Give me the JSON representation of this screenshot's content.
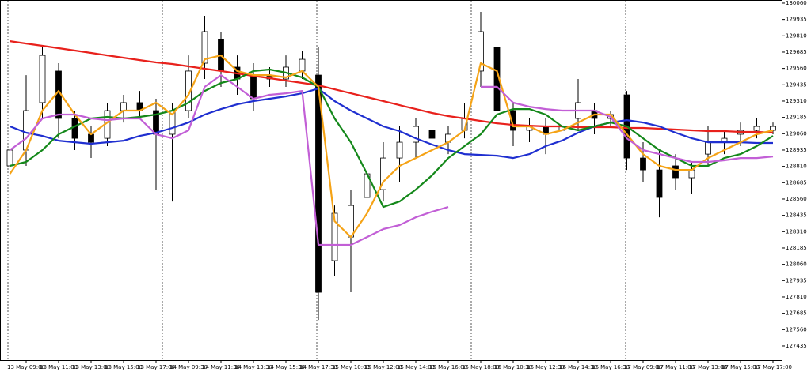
{
  "chart_data": {
    "type": "candlestick",
    "categories": [
      null,
      "13 May 09:00",
      null,
      "13 May 11:00",
      null,
      "13 May 13:00",
      null,
      "13 May 15:00",
      null,
      "13 May 17:00",
      null,
      "14 May 09:30",
      null,
      "14 May 11:30",
      null,
      "14 May 13:30",
      null,
      "14 May 15:30",
      null,
      "14 May 17:30",
      null,
      "15 May 10:00",
      null,
      "15 May 12:00",
      null,
      "15 May 14:00",
      null,
      "15 May 16:00",
      null,
      "15 May 18:00",
      null,
      "16 May 10:30",
      null,
      "16 May 12:30",
      null,
      "16 May 14:30",
      null,
      "16 May 16:30",
      null,
      "17 May 09:00",
      null,
      "17 May 11:00",
      null,
      "17 May 13:00",
      null,
      "17 May 15:00",
      null,
      "17 May 17:00"
    ],
    "open": [
      128814,
      128935,
      129298,
      129540,
      129177,
      129056,
      129025,
      129237,
      129298,
      129237,
      129056,
      129237,
      129600,
      129782,
      129570,
      129509,
      129509,
      129479,
      129540,
      129509,
      128088,
      128269,
      128572,
      128632,
      128874,
      128995,
      129086,
      128995,
      129086,
      129540,
      129721,
      129237,
      129086,
      129116,
      129086,
      129177,
      129237,
      129177,
      129358,
      128874,
      128783,
      128814,
      128723,
      128904,
      128995,
      129056,
      129086,
      129086
    ],
    "high": [
      129298,
      129509,
      129721,
      129600,
      129237,
      129116,
      129298,
      129358,
      129388,
      129328,
      129298,
      129660,
      129963,
      129842,
      129660,
      129600,
      129570,
      129660,
      129691,
      129721,
      128511,
      128632,
      128874,
      128995,
      129116,
      129177,
      129207,
      129116,
      129298,
      129993,
      129751,
      129298,
      129177,
      129177,
      129207,
      129479,
      129298,
      129237,
      129388,
      128995,
      128935,
      128904,
      128844,
      129116,
      129086,
      129146,
      129177,
      129146
    ],
    "low": [
      128693,
      128814,
      129177,
      129025,
      128935,
      128874,
      128965,
      129146,
      129177,
      128632,
      128541,
      129177,
      129479,
      129419,
      129358,
      129237,
      129419,
      129419,
      129479,
      127634,
      127967,
      127846,
      128451,
      128541,
      128693,
      128874,
      128935,
      128904,
      129025,
      129419,
      128814,
      128965,
      128995,
      128904,
      128965,
      129086,
      129056,
      129116,
      128783,
      128693,
      128420,
      128632,
      128602,
      128814,
      128904,
      128965,
      129025,
      129056
    ],
    "close": [
      128935,
      129237,
      129660,
      129177,
      129025,
      128995,
      129237,
      129298,
      129237,
      129056,
      129237,
      129540,
      129842,
      129540,
      129479,
      129328,
      129479,
      129570,
      129630,
      127846,
      128451,
      128511,
      128753,
      128874,
      128995,
      129116,
      129025,
      129056,
      129177,
      129842,
      129237,
      129086,
      129116,
      129056,
      129116,
      129298,
      129177,
      129207,
      128874,
      128783,
      128572,
      128723,
      128783,
      128995,
      129025,
      129086,
      129116,
      129116
    ],
    "up_color": "#ffffff",
    "down_color": "#000000",
    "lines": [
      {
        "color": "#e8211c",
        "values": [
          129769,
          129751,
          129733,
          129715,
          129697,
          129679,
          129660,
          129642,
          129624,
          129606,
          129594,
          129576,
          129558,
          129540,
          129521,
          129503,
          129485,
          129467,
          129449,
          129431,
          129400,
          129370,
          129340,
          129310,
          129279,
          129249,
          129219,
          129195,
          129177,
          129158,
          129140,
          129128,
          129122,
          129116,
          129116,
          129110,
          129110,
          129110,
          129104,
          129104,
          129098,
          129092,
          129086,
          129080,
          129080,
          129074,
          129074,
          129068
        ]
      },
      {
        "color": "#1f2fd0",
        "values": [
          129116,
          129068,
          129043,
          129007,
          128995,
          128983,
          128995,
          129007,
          129043,
          129068,
          129104,
          129146,
          129207,
          129249,
          129285,
          129310,
          129328,
          129346,
          129370,
          129406,
          129310,
          129237,
          129177,
          129116,
          129080,
          129025,
          128977,
          128935,
          128904,
          128898,
          128892,
          128874,
          128904,
          128965,
          129007,
          129068,
          129116,
          129146,
          129164,
          129146,
          129116,
          129068,
          129025,
          128995,
          128995,
          128995,
          128989,
          128989
        ]
      },
      {
        "color": "#14881a",
        "values": [
          128814,
          128844,
          128935,
          129056,
          129116,
          129177,
          129189,
          129177,
          129189,
          129207,
          129237,
          129298,
          129388,
          129449,
          129479,
          129540,
          129552,
          129528,
          129491,
          129419,
          129177,
          128995,
          128753,
          128499,
          128541,
          128632,
          128741,
          128874,
          128965,
          129056,
          129207,
          129249,
          129249,
          129207,
          129116,
          129086,
          129116,
          129146,
          129116,
          129025,
          128935,
          128874,
          128814,
          128814,
          128874,
          128904,
          128965,
          129043
        ]
      },
      {
        "color": "#f5a316",
        "values": [
          128753,
          128935,
          129237,
          129388,
          129207,
          129056,
          129146,
          129237,
          129237,
          129298,
          129207,
          129358,
          129630,
          129660,
          129540,
          129509,
          129509,
          129491,
          129540,
          129419,
          128390,
          128269,
          128451,
          128693,
          128814,
          128874,
          128935,
          128995,
          129086,
          129600,
          129540,
          129116,
          129116,
          129056,
          129086,
          129146,
          129207,
          129207,
          129056,
          128904,
          128814,
          128783,
          128783,
          128874,
          128935,
          128995,
          129056,
          129086
        ]
      },
      {
        "color": "#c25fd6",
        "values": [
          128935,
          129025,
          129177,
          129207,
          129207,
          129177,
          129164,
          129177,
          129177,
          129056,
          129025,
          129086,
          129419,
          129509,
          129419,
          129328,
          129358,
          129370,
          129388,
          128209,
          128209,
          128209,
          128269,
          128330,
          128360,
          128420,
          128463,
          128499,
          null,
          129419,
          129419,
          129298,
          129267,
          129249,
          129237,
          129237,
          129237,
          129189,
          129025,
          128935,
          128904,
          128874,
          128844,
          128844,
          128856,
          128874,
          128874,
          128886
        ]
      }
    ],
    "ylim": [
      127326,
      130084
    ],
    "yticks": [
      130060,
      129935,
      129810,
      129685,
      129560,
      129435,
      129310,
      129185,
      129060,
      128935,
      128810,
      128685,
      128560,
      128435,
      128310,
      128185,
      128060,
      127935,
      127810,
      127685,
      127560,
      127435
    ]
  }
}
